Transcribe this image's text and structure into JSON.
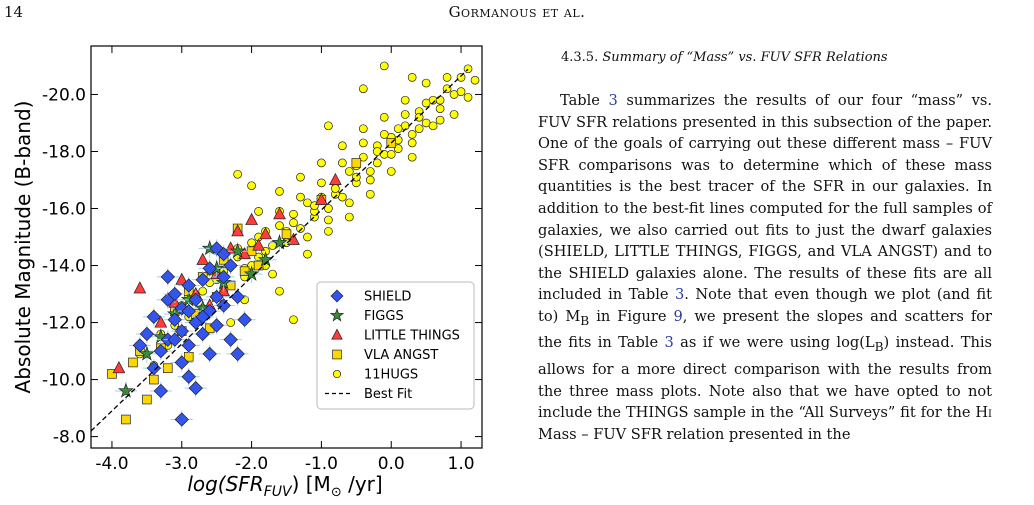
{
  "header": {
    "page_number": "14",
    "running_head": "Gormanous et al."
  },
  "section": {
    "number": "4.3.5.",
    "title": "Summary of “Mass” vs. FUV SFR Relations"
  },
  "paragraph": {
    "p1": "Table ",
    "ref1": "3",
    "p2": " summarizes the results of our four “mass” vs. FUV SFR relations presented in this subsection of the paper. One of the goals of carrying out these different mass – FUV SFR comparisons was to determine which of these mass quantities is the best tracer of the SFR in our galaxies. In addition to the best-fit lines computed for the full samples of galaxies, we also carried out fits to just the dwarf galaxies (SHIELD, LITTLE THINGS, FIGGS, and VLA ANGST) and to the SHIELD galaxies alone. The results of these fits are all included in Table ",
    "ref2": "3",
    "p3": ". Note that even though we plot (and fit to) M",
    "sub1": "B",
    "p4": " in Figure ",
    "ref3": "9",
    "p5": ", we present the slopes and scatters for the fits in Table ",
    "ref4": "3",
    "p6": " as if we were using log(L",
    "sub2": "B",
    "p7": ") instead. This allows for a more direct comparison with the results from the three mass plots. Note also that we have opted to not include the THINGS sample in the “All Surveys” fit for the H",
    "p8": "i",
    "p9": " Mass – FUV SFR relation presented in the"
  },
  "chart_data": {
    "type": "scatter",
    "xlabel": "log(SFR_FUV) [M⊙ /yr]",
    "xlabel_main": "log(SFR",
    "xlabel_sub": "FUV",
    "xlabel_tail": ") [M",
    "xlabel_sun": "⊙",
    "xlabel_end": " /yr]",
    "ylabel": "Absolute Magnitude (B-band)",
    "xlim": [
      -4.3,
      1.3
    ],
    "ylim": [
      -7.6,
      -21.7
    ],
    "y_inverted": true,
    "grid": false,
    "legend_position": "bottom-right",
    "x_ticks": [
      -4.0,
      -3.0,
      -2.0,
      -1.0,
      0.0,
      1.0
    ],
    "x_tick_labels": [
      "-4.0",
      "-3.0",
      "-2.0",
      "-1.0",
      "0.0",
      "1.0"
    ],
    "y_ticks": [
      -8.0,
      -10.0,
      -12.0,
      -14.0,
      -16.0,
      -18.0,
      -20.0
    ],
    "y_tick_labels": [
      "-8.0",
      "-10.0",
      "-12.0",
      "-14.0",
      "-16.0",
      "-18.0",
      "-20.0"
    ],
    "series": [
      {
        "name": "11HUGS",
        "marker": "circle",
        "color": "#ffff00",
        "points": [
          [
            -3.4,
            -10.5
          ],
          [
            -3.3,
            -11.6
          ],
          [
            -3.1,
            -11.9
          ],
          [
            -3.0,
            -12.6
          ],
          [
            -2.9,
            -12.2
          ],
          [
            -2.8,
            -12.9
          ],
          [
            -2.7,
            -12.5
          ],
          [
            -2.6,
            -13.4
          ],
          [
            -2.5,
            -12.9
          ],
          [
            -2.4,
            -13.8
          ],
          [
            -2.3,
            -13.3
          ],
          [
            -2.2,
            -14.3
          ],
          [
            -2.1,
            -13.9
          ],
          [
            -2.0,
            -14.8
          ],
          [
            -1.9,
            -14.3
          ],
          [
            -1.8,
            -15.2
          ],
          [
            -1.7,
            -14.7
          ],
          [
            -1.6,
            -15.4
          ],
          [
            -1.5,
            -15.0
          ],
          [
            -1.4,
            -15.8
          ],
          [
            -1.3,
            -15.3
          ],
          [
            -1.2,
            -16.2
          ],
          [
            -1.1,
            -15.7
          ],
          [
            -1.0,
            -16.4
          ],
          [
            -0.9,
            -16.0
          ],
          [
            -0.8,
            -16.9
          ],
          [
            -0.7,
            -16.4
          ],
          [
            -0.6,
            -17.3
          ],
          [
            -0.5,
            -16.9
          ],
          [
            -0.4,
            -17.8
          ],
          [
            -0.3,
            -17.3
          ],
          [
            -0.2,
            -18.2
          ],
          [
            -0.1,
            -17.9
          ],
          [
            0.0,
            -18.5
          ],
          [
            0.1,
            -18.1
          ],
          [
            0.2,
            -18.9
          ],
          [
            0.3,
            -18.6
          ],
          [
            0.4,
            -19.4
          ],
          [
            0.5,
            -19.0
          ],
          [
            0.6,
            -19.8
          ],
          [
            0.7,
            -19.5
          ],
          [
            0.8,
            -20.2
          ],
          [
            0.9,
            -20.0
          ],
          [
            1.0,
            -20.6
          ],
          [
            1.1,
            -20.9
          ],
          [
            1.2,
            -20.5
          ],
          [
            -2.6,
            -13.8
          ],
          [
            -2.2,
            -14.6
          ],
          [
            -1.9,
            -15.0
          ],
          [
            -1.6,
            -15.9
          ],
          [
            -1.3,
            -16.4
          ],
          [
            -1.0,
            -16.9
          ],
          [
            -0.7,
            -17.6
          ],
          [
            -0.4,
            -18.3
          ],
          [
            -0.1,
            -18.6
          ],
          [
            0.2,
            -19.3
          ],
          [
            0.5,
            -19.7
          ],
          [
            0.8,
            -20.6
          ],
          [
            -2.9,
            -12.9
          ],
          [
            -2.5,
            -13.5
          ],
          [
            -2.0,
            -14.0
          ],
          [
            -1.5,
            -15.2
          ],
          [
            -1.1,
            -15.9
          ],
          [
            -0.8,
            -16.5
          ],
          [
            -0.5,
            -17.1
          ],
          [
            -0.2,
            -17.6
          ],
          [
            0.1,
            -18.4
          ],
          [
            0.4,
            -18.8
          ],
          [
            0.7,
            -19.1
          ],
          [
            1.0,
            -20.1
          ],
          [
            -1.7,
            -13.7
          ],
          [
            -1.2,
            -14.4
          ],
          [
            -0.9,
            -15.2
          ],
          [
            -0.6,
            -15.7
          ],
          [
            -0.3,
            -16.5
          ],
          [
            0.0,
            -17.3
          ],
          [
            0.3,
            -17.8
          ],
          [
            -1.9,
            -15.9
          ],
          [
            -1.6,
            -16.6
          ],
          [
            -1.3,
            -17.1
          ],
          [
            -1.0,
            -17.6
          ],
          [
            -0.7,
            -18.2
          ],
          [
            -0.4,
            -18.8
          ],
          [
            -0.1,
            -19.2
          ],
          [
            0.2,
            -19.8
          ],
          [
            0.5,
            -20.4
          ],
          [
            -0.9,
            -18.9
          ],
          [
            -0.4,
            -20.2
          ],
          [
            -0.1,
            -21.0
          ],
          [
            0.3,
            -20.6
          ],
          [
            -2.2,
            -17.2
          ],
          [
            -2.0,
            -16.8
          ],
          [
            -1.4,
            -12.1
          ],
          [
            -1.6,
            -13.1
          ],
          [
            -2.3,
            -12.0
          ],
          [
            -2.1,
            -12.8
          ],
          [
            -1.8,
            -14.0
          ],
          [
            -1.5,
            -14.8
          ],
          [
            -1.2,
            -15.0
          ],
          [
            -0.9,
            -15.6
          ],
          [
            -0.6,
            -16.2
          ],
          [
            -0.3,
            -17.0
          ],
          [
            0.0,
            -17.9
          ],
          [
            0.3,
            -18.3
          ],
          [
            0.6,
            -18.9
          ],
          [
            0.9,
            -19.3
          ],
          [
            1.1,
            -19.9
          ],
          [
            -2.7,
            -13.1
          ],
          [
            -2.4,
            -13.1
          ],
          [
            -2.1,
            -13.6
          ],
          [
            -1.8,
            -14.5
          ],
          [
            -1.4,
            -15.5
          ],
          [
            -1.1,
            -16.1
          ],
          [
            -0.8,
            -16.7
          ],
          [
            -0.5,
            -17.5
          ],
          [
            -0.2,
            -18.0
          ],
          [
            0.1,
            -18.8
          ],
          [
            0.4,
            -19.2
          ],
          [
            0.7,
            -19.8
          ],
          [
            -3.6,
            -10.9
          ],
          [
            -3.2,
            -11.2
          ]
        ]
      },
      {
        "name": "VLA ANGST",
        "marker": "square",
        "color": "#ffd700",
        "points": [
          [
            -4.0,
            -10.2
          ],
          [
            -3.8,
            -8.6
          ],
          [
            -3.6,
            -11.0
          ],
          [
            -3.5,
            -9.3
          ],
          [
            -3.4,
            -10.0
          ],
          [
            -3.3,
            -11.1
          ],
          [
            -3.2,
            -10.4
          ],
          [
            -3.1,
            -12.4
          ],
          [
            -3.0,
            -11.7
          ],
          [
            -2.9,
            -13.1
          ],
          [
            -2.8,
            -12.3
          ],
          [
            -2.7,
            -13.6
          ],
          [
            -2.6,
            -11.8
          ],
          [
            -2.5,
            -12.9
          ],
          [
            -2.4,
            -14.2
          ],
          [
            -2.3,
            -13.3
          ],
          [
            -2.2,
            -15.3
          ],
          [
            -2.1,
            -13.8
          ],
          [
            -2.0,
            -14.5
          ],
          [
            -1.9,
            -14.0
          ],
          [
            -1.5,
            -15.1
          ],
          [
            -1.0,
            -16.3
          ],
          [
            -0.5,
            -17.6
          ],
          [
            0.0,
            -18.3
          ],
          [
            -3.7,
            -10.6
          ],
          [
            -2.9,
            -10.8
          ]
        ]
      },
      {
        "name": "LITTLE THINGS",
        "marker": "triangle",
        "color": "#ff3b3b",
        "points": [
          [
            -3.9,
            -10.4
          ],
          [
            -3.6,
            -13.2
          ],
          [
            -3.3,
            -12.0
          ],
          [
            -3.1,
            -12.7
          ],
          [
            -3.0,
            -13.5
          ],
          [
            -2.8,
            -13.0
          ],
          [
            -2.7,
            -14.2
          ],
          [
            -2.5,
            -13.7
          ],
          [
            -2.3,
            -14.6
          ],
          [
            -2.2,
            -15.2
          ],
          [
            -2.1,
            -14.4
          ],
          [
            -2.0,
            -15.6
          ],
          [
            -1.8,
            -15.1
          ],
          [
            -1.6,
            -15.8
          ],
          [
            -1.4,
            -14.9
          ],
          [
            -1.0,
            -16.3
          ],
          [
            -0.8,
            -17.0
          ],
          [
            -2.6,
            -12.6
          ],
          [
            -2.4,
            -13.1
          ],
          [
            -1.9,
            -14.7
          ]
        ]
      },
      {
        "name": "FIGGS",
        "marker": "star",
        "color": "#3a8c3a",
        "points": [
          [
            -3.8,
            -9.6
          ],
          [
            -3.5,
            -10.9
          ],
          [
            -3.3,
            -11.5
          ],
          [
            -3.1,
            -12.3
          ],
          [
            -2.9,
            -12.8
          ],
          [
            -2.7,
            -12.5
          ],
          [
            -2.5,
            -13.9
          ],
          [
            -2.4,
            -13.4
          ],
          [
            -2.2,
            -14.5
          ],
          [
            -2.0,
            -13.7
          ],
          [
            -1.8,
            -14.2
          ],
          [
            -1.6,
            -14.8
          ],
          [
            -2.6,
            -14.6
          ]
        ]
      },
      {
        "name": "SHIELD",
        "marker": "diamond",
        "color": "#3355ee",
        "points": [
          [
            -3.5,
            -11.6
          ],
          [
            -3.4,
            -12.2
          ],
          [
            -3.3,
            -11.0
          ],
          [
            -3.2,
            -12.8
          ],
          [
            -3.2,
            -11.4
          ],
          [
            -3.1,
            -12.1
          ],
          [
            -3.1,
            -13.0
          ],
          [
            -3.0,
            -11.7
          ],
          [
            -3.0,
            -12.5
          ],
          [
            -2.9,
            -13.3
          ],
          [
            -2.9,
            -11.2
          ],
          [
            -2.8,
            -12.0
          ],
          [
            -2.8,
            -12.8
          ],
          [
            -2.7,
            -13.5
          ],
          [
            -2.7,
            -11.6
          ],
          [
            -2.6,
            -12.4
          ],
          [
            -2.6,
            -13.9
          ],
          [
            -2.5,
            -12.9
          ],
          [
            -2.5,
            -11.9
          ],
          [
            -2.4,
            -13.6
          ],
          [
            -2.4,
            -12.6
          ],
          [
            -2.3,
            -14.0
          ],
          [
            -2.3,
            -11.4
          ],
          [
            -2.2,
            -12.9
          ],
          [
            -3.6,
            -11.2
          ],
          [
            -3.4,
            -10.4
          ],
          [
            -3.3,
            -9.6
          ],
          [
            -3.0,
            -10.6
          ],
          [
            -2.9,
            -10.1
          ],
          [
            -2.8,
            -9.7
          ],
          [
            -2.6,
            -10.9
          ],
          [
            -2.2,
            -10.9
          ],
          [
            -3.0,
            -8.6
          ],
          [
            -2.5,
            -14.6
          ],
          [
            -2.4,
            -14.4
          ],
          [
            -3.2,
            -13.6
          ],
          [
            -2.1,
            -12.1
          ],
          [
            -2.7,
            -12.2
          ],
          [
            -3.1,
            -11.4
          ],
          [
            -2.9,
            -12.4
          ]
        ]
      }
    ],
    "best_fit": {
      "name": "Best Fit",
      "slope": -2.35,
      "intercept": -18.3,
      "x_range": [
        -4.3,
        1.1
      ]
    }
  }
}
